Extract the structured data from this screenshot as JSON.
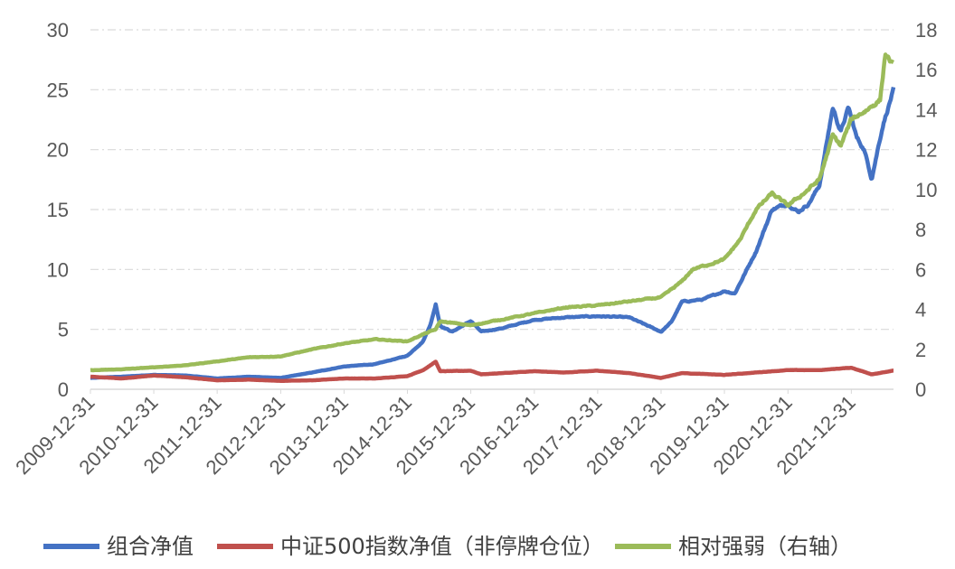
{
  "chart_data": {
    "type": "line",
    "title": "",
    "xlabel": "",
    "ylabel": "",
    "y_left": {
      "min": 0,
      "max": 30,
      "ticks": [
        "0",
        "5",
        "10",
        "15",
        "20",
        "25",
        "30"
      ]
    },
    "y_right": {
      "min": 0,
      "max": 18,
      "ticks": [
        "0",
        "2",
        "4",
        "6",
        "8",
        "10",
        "12",
        "14",
        "16",
        "18"
      ]
    },
    "x_range": [
      "2009-12-31",
      "2022-08-31"
    ],
    "x_tick_labels": [
      "2009-12-31",
      "2010-12-31",
      "2011-12-31",
      "2012-12-31",
      "2013-12-31",
      "2014-12-31",
      "2015-12-31",
      "2016-12-31",
      "2017-12-31",
      "2018-12-31",
      "2019-12-31",
      "2020-12-31",
      "2021-12-31"
    ],
    "grid": "horizontal dashed",
    "legend_position": "bottom",
    "series": [
      {
        "name": "组合净值",
        "axis": "left",
        "color": "#4472c4",
        "points": [
          [
            "2009-12-31",
            0.95
          ],
          [
            "2010-06-30",
            1.05
          ],
          [
            "2010-12-31",
            1.2
          ],
          [
            "2011-06-30",
            1.15
          ],
          [
            "2011-12-31",
            0.9
          ],
          [
            "2012-06-30",
            1.05
          ],
          [
            "2012-12-31",
            0.95
          ],
          [
            "2013-06-30",
            1.4
          ],
          [
            "2013-12-31",
            1.9
          ],
          [
            "2014-06-30",
            2.1
          ],
          [
            "2014-12-31",
            2.8
          ],
          [
            "2015-03-31",
            4.0
          ],
          [
            "2015-05-15",
            5.5
          ],
          [
            "2015-06-12",
            7.1
          ],
          [
            "2015-07-08",
            5.3
          ],
          [
            "2015-09-15",
            4.8
          ],
          [
            "2015-12-31",
            5.7
          ],
          [
            "2016-02-29",
            4.8
          ],
          [
            "2016-06-30",
            5.1
          ],
          [
            "2016-12-31",
            5.8
          ],
          [
            "2017-06-30",
            6.0
          ],
          [
            "2017-12-31",
            6.1
          ],
          [
            "2018-06-30",
            6.0
          ],
          [
            "2018-09-30",
            5.4
          ],
          [
            "2018-12-31",
            4.8
          ],
          [
            "2019-02-28",
            5.6
          ],
          [
            "2019-04-30",
            7.3
          ],
          [
            "2019-08-31",
            7.5
          ],
          [
            "2019-12-31",
            8.2
          ],
          [
            "2020-02-29",
            8.0
          ],
          [
            "2020-06-30",
            11.5
          ],
          [
            "2020-09-30",
            15.0
          ],
          [
            "2020-12-31",
            15.5
          ],
          [
            "2021-02-28",
            14.8
          ],
          [
            "2021-04-30",
            15.5
          ],
          [
            "2021-06-30",
            17.0
          ],
          [
            "2021-09-15",
            23.5
          ],
          [
            "2021-10-31",
            21.5
          ],
          [
            "2021-12-15",
            23.5
          ],
          [
            "2022-01-31",
            21.0
          ],
          [
            "2022-03-15",
            20.0
          ],
          [
            "2022-04-27",
            17.6
          ],
          [
            "2022-06-30",
            22.0
          ],
          [
            "2022-08-31",
            25.0
          ]
        ]
      },
      {
        "name": "中证500指数净值（非停牌仓位）",
        "axis": "left",
        "color": "#c0504d",
        "points": [
          [
            "2009-12-31",
            1.05
          ],
          [
            "2010-06-30",
            0.9
          ],
          [
            "2010-12-31",
            1.15
          ],
          [
            "2011-06-30",
            1.0
          ],
          [
            "2011-12-31",
            0.75
          ],
          [
            "2012-06-30",
            0.8
          ],
          [
            "2012-12-31",
            0.7
          ],
          [
            "2013-06-30",
            0.75
          ],
          [
            "2013-12-31",
            0.9
          ],
          [
            "2014-06-30",
            0.9
          ],
          [
            "2014-12-31",
            1.1
          ],
          [
            "2015-03-31",
            1.6
          ],
          [
            "2015-06-12",
            2.3
          ],
          [
            "2015-07-08",
            1.5
          ],
          [
            "2015-12-31",
            1.55
          ],
          [
            "2016-02-29",
            1.25
          ],
          [
            "2016-12-31",
            1.5
          ],
          [
            "2017-06-30",
            1.4
          ],
          [
            "2017-12-31",
            1.55
          ],
          [
            "2018-06-30",
            1.35
          ],
          [
            "2018-12-31",
            0.95
          ],
          [
            "2019-04-30",
            1.35
          ],
          [
            "2019-12-31",
            1.2
          ],
          [
            "2020-06-30",
            1.4
          ],
          [
            "2020-12-31",
            1.6
          ],
          [
            "2021-06-30",
            1.6
          ],
          [
            "2021-12-31",
            1.8
          ],
          [
            "2022-04-27",
            1.25
          ],
          [
            "2022-08-31",
            1.55
          ]
        ]
      },
      {
        "name": "相对强弱（右轴）",
        "axis": "right",
        "color": "#9bbb59",
        "points": [
          [
            "2009-12-31",
            0.95
          ],
          [
            "2010-06-30",
            1.0
          ],
          [
            "2010-12-31",
            1.1
          ],
          [
            "2011-06-30",
            1.2
          ],
          [
            "2011-12-31",
            1.4
          ],
          [
            "2012-06-30",
            1.6
          ],
          [
            "2012-12-31",
            1.65
          ],
          [
            "2013-06-30",
            2.0
          ],
          [
            "2013-12-31",
            2.3
          ],
          [
            "2014-06-30",
            2.5
          ],
          [
            "2014-12-31",
            2.4
          ],
          [
            "2015-03-31",
            2.75
          ],
          [
            "2015-06-12",
            3.0
          ],
          [
            "2015-07-08",
            3.4
          ],
          [
            "2015-12-31",
            3.2
          ],
          [
            "2016-06-30",
            3.5
          ],
          [
            "2016-12-31",
            3.8
          ],
          [
            "2017-06-30",
            4.1
          ],
          [
            "2017-12-31",
            4.2
          ],
          [
            "2018-06-30",
            4.4
          ],
          [
            "2018-12-31",
            4.6
          ],
          [
            "2019-04-30",
            5.4
          ],
          [
            "2019-06-30",
            6.0
          ],
          [
            "2019-12-31",
            6.5
          ],
          [
            "2020-03-31",
            7.5
          ],
          [
            "2020-06-30",
            9.0
          ],
          [
            "2020-09-30",
            9.8
          ],
          [
            "2020-12-31",
            9.2
          ],
          [
            "2021-03-31",
            9.8
          ],
          [
            "2021-06-30",
            10.5
          ],
          [
            "2021-09-15",
            12.7
          ],
          [
            "2021-10-31",
            12.2
          ],
          [
            "2021-12-31",
            13.5
          ],
          [
            "2022-03-31",
            14.0
          ],
          [
            "2022-06-15",
            14.5
          ],
          [
            "2022-07-15",
            16.8
          ],
          [
            "2022-08-31",
            16.2
          ]
        ]
      }
    ]
  }
}
